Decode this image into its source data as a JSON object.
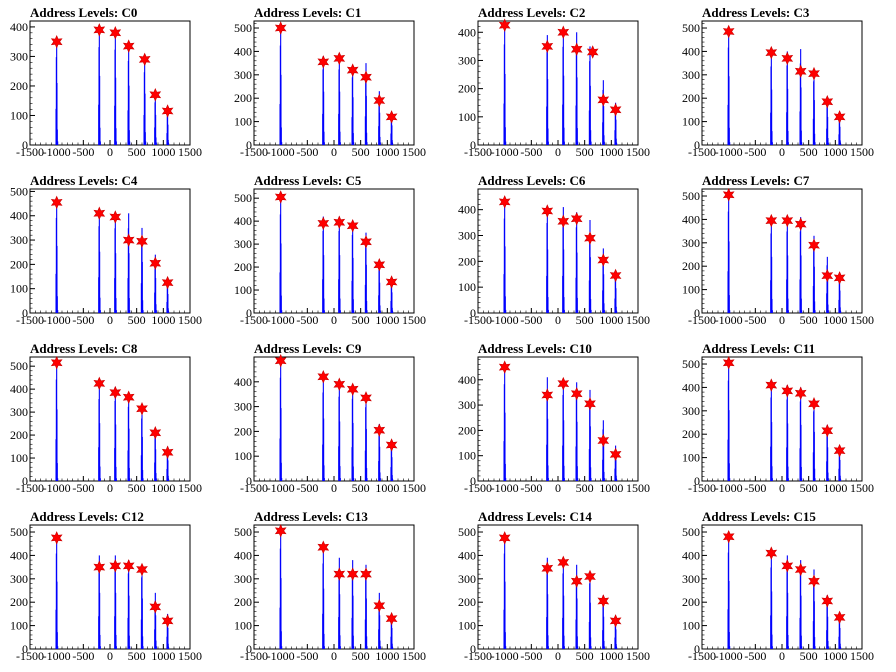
{
  "chart_data": [
    {
      "title": "Address Levels: C0",
      "type": "bar",
      "xlim": [
        -1500,
        1500
      ],
      "ylim": [
        0,
        420
      ],
      "yticks": [
        0,
        100,
        200,
        300,
        400
      ],
      "xticks": [
        -1500,
        -1000,
        -500,
        0,
        500,
        1000,
        1500
      ],
      "peaks": [
        -1000,
        -200,
        100,
        350,
        650,
        850,
        1080
      ],
      "counts": [
        350,
        390,
        380,
        335,
        290,
        170,
        115
      ],
      "markers": [
        {
          "x": -1000,
          "y": 350
        },
        {
          "x": -200,
          "y": 390
        },
        {
          "x": 100,
          "y": 380
        },
        {
          "x": 350,
          "y": 335
        },
        {
          "x": 650,
          "y": 290
        },
        {
          "x": 850,
          "y": 170
        },
        {
          "x": 1080,
          "y": 115
        }
      ]
    },
    {
      "title": "Address Levels: C1",
      "type": "bar",
      "xlim": [
        -1500,
        1500
      ],
      "ylim": [
        0,
        530
      ],
      "yticks": [
        0,
        100,
        200,
        300,
        400,
        500
      ],
      "xticks": [
        -1500,
        -1000,
        -500,
        0,
        500,
        1000,
        1500
      ],
      "peaks": [
        -1000,
        -200,
        100,
        350,
        600,
        850,
        1080
      ],
      "counts": [
        500,
        380,
        380,
        340,
        350,
        230,
        140
      ],
      "markers": [
        {
          "x": -1000,
          "y": 500
        },
        {
          "x": -200,
          "y": 355
        },
        {
          "x": 100,
          "y": 370
        },
        {
          "x": 350,
          "y": 320
        },
        {
          "x": 600,
          "y": 290
        },
        {
          "x": 850,
          "y": 190
        },
        {
          "x": 1080,
          "y": 120
        }
      ]
    },
    {
      "title": "Address Levels: C2",
      "type": "bar",
      "xlim": [
        -1500,
        1500
      ],
      "ylim": [
        0,
        440
      ],
      "yticks": [
        0,
        100,
        200,
        300,
        400
      ],
      "xticks": [
        -1500,
        -1000,
        -500,
        0,
        500,
        1000,
        1500
      ],
      "peaks": [
        -1000,
        -200,
        100,
        350,
        600,
        850,
        1080
      ],
      "counts": [
        420,
        390,
        410,
        400,
        350,
        230,
        150
      ],
      "markers": [
        {
          "x": -1000,
          "y": 425
        },
        {
          "x": -200,
          "y": 350
        },
        {
          "x": 100,
          "y": 400
        },
        {
          "x": 350,
          "y": 340
        },
        {
          "x": 650,
          "y": 330
        },
        {
          "x": 850,
          "y": 160
        },
        {
          "x": 1080,
          "y": 125
        }
      ]
    },
    {
      "title": "Address Levels: C3",
      "type": "bar",
      "xlim": [
        -1500,
        1500
      ],
      "ylim": [
        0,
        530
      ],
      "yticks": [
        0,
        100,
        200,
        300,
        400,
        500
      ],
      "xticks": [
        -1500,
        -1000,
        -500,
        0,
        500,
        1000,
        1500
      ],
      "peaks": [
        -1000,
        -200,
        100,
        350,
        600,
        850,
        1080
      ],
      "counts": [
        490,
        395,
        400,
        410,
        320,
        200,
        130
      ],
      "markers": [
        {
          "x": -1000,
          "y": 485
        },
        {
          "x": -200,
          "y": 395
        },
        {
          "x": 100,
          "y": 370
        },
        {
          "x": 350,
          "y": 315
        },
        {
          "x": 600,
          "y": 305
        },
        {
          "x": 850,
          "y": 185
        },
        {
          "x": 1080,
          "y": 120
        }
      ]
    },
    {
      "title": "Address Levels: C4",
      "type": "bar",
      "xlim": [
        -1500,
        1500
      ],
      "ylim": [
        0,
        510
      ],
      "yticks": [
        0,
        100,
        200,
        300,
        400,
        500
      ],
      "xticks": [
        -1500,
        -1000,
        -500,
        0,
        500,
        1000,
        1500
      ],
      "peaks": [
        -1000,
        -200,
        100,
        350,
        600,
        850,
        1080
      ],
      "counts": [
        460,
        420,
        410,
        410,
        350,
        240,
        130
      ],
      "markers": [
        {
          "x": -1000,
          "y": 455
        },
        {
          "x": -200,
          "y": 410
        },
        {
          "x": 100,
          "y": 395
        },
        {
          "x": 350,
          "y": 300
        },
        {
          "x": 600,
          "y": 295
        },
        {
          "x": 850,
          "y": 205
        },
        {
          "x": 1080,
          "y": 125
        }
      ]
    },
    {
      "title": "Address Levels: C5",
      "type": "bar",
      "xlim": [
        -1500,
        1500
      ],
      "ylim": [
        0,
        540
      ],
      "yticks": [
        0,
        100,
        200,
        300,
        400,
        500
      ],
      "xticks": [
        -1500,
        -1000,
        -500,
        0,
        500,
        1000,
        1500
      ],
      "peaks": [
        -1000,
        -200,
        100,
        350,
        600,
        850,
        1080
      ],
      "counts": [
        505,
        420,
        420,
        400,
        350,
        220,
        150
      ],
      "markers": [
        {
          "x": -1000,
          "y": 505
        },
        {
          "x": -200,
          "y": 390
        },
        {
          "x": 100,
          "y": 395
        },
        {
          "x": 350,
          "y": 380
        },
        {
          "x": 600,
          "y": 310
        },
        {
          "x": 850,
          "y": 210
        },
        {
          "x": 1080,
          "y": 135
        }
      ]
    },
    {
      "title": "Address Levels: C6",
      "type": "bar",
      "xlim": [
        -1500,
        1500
      ],
      "ylim": [
        0,
        480
      ],
      "yticks": [
        0,
        100,
        200,
        300,
        400
      ],
      "xticks": [
        -1500,
        -1000,
        -500,
        0,
        500,
        1000,
        1500
      ],
      "peaks": [
        -1000,
        -200,
        100,
        350,
        600,
        850,
        1080
      ],
      "counts": [
        430,
        410,
        410,
        390,
        360,
        250,
        160
      ],
      "markers": [
        {
          "x": -1000,
          "y": 430
        },
        {
          "x": -200,
          "y": 395
        },
        {
          "x": 100,
          "y": 355
        },
        {
          "x": 350,
          "y": 365
        },
        {
          "x": 600,
          "y": 290
        },
        {
          "x": 850,
          "y": 205
        },
        {
          "x": 1080,
          "y": 145
        }
      ]
    },
    {
      "title": "Address Levels: C7",
      "type": "bar",
      "xlim": [
        -1500,
        1500
      ],
      "ylim": [
        0,
        530
      ],
      "yticks": [
        0,
        100,
        200,
        300,
        400,
        500
      ],
      "xticks": [
        -1500,
        -1000,
        -500,
        0,
        500,
        1000,
        1500
      ],
      "peaks": [
        -1000,
        -200,
        100,
        350,
        600,
        850,
        1080
      ],
      "counts": [
        510,
        400,
        410,
        410,
        330,
        240,
        160
      ],
      "markers": [
        {
          "x": -1000,
          "y": 505
        },
        {
          "x": -200,
          "y": 395
        },
        {
          "x": 100,
          "y": 395
        },
        {
          "x": 350,
          "y": 380
        },
        {
          "x": 600,
          "y": 290
        },
        {
          "x": 850,
          "y": 160
        },
        {
          "x": 1080,
          "y": 150
        }
      ]
    },
    {
      "title": "Address Levels: C8",
      "type": "bar",
      "xlim": [
        -1500,
        1500
      ],
      "ylim": [
        0,
        540
      ],
      "yticks": [
        0,
        100,
        200,
        300,
        400,
        500
      ],
      "xticks": [
        -1500,
        -1000,
        -500,
        0,
        500,
        1000,
        1500
      ],
      "peaks": [
        -1000,
        -200,
        100,
        350,
        600,
        850,
        1080
      ],
      "counts": [
        520,
        420,
        410,
        380,
        320,
        230,
        150
      ],
      "markers": [
        {
          "x": -1000,
          "y": 515
        },
        {
          "x": -200,
          "y": 425
        },
        {
          "x": 100,
          "y": 385
        },
        {
          "x": 350,
          "y": 365
        },
        {
          "x": 600,
          "y": 315
        },
        {
          "x": 850,
          "y": 210
        },
        {
          "x": 1080,
          "y": 125
        }
      ]
    },
    {
      "title": "Address Levels: C9",
      "type": "bar",
      "xlim": [
        -1500,
        1500
      ],
      "ylim": [
        0,
        500
      ],
      "yticks": [
        0,
        100,
        200,
        300,
        400
      ],
      "xticks": [
        -1500,
        -1000,
        -500,
        0,
        500,
        1000,
        1500
      ],
      "peaks": [
        -1000,
        -200,
        100,
        350,
        600,
        850,
        1080
      ],
      "counts": [
        490,
        420,
        400,
        390,
        350,
        230,
        160
      ],
      "markers": [
        {
          "x": -1000,
          "y": 485
        },
        {
          "x": -200,
          "y": 420
        },
        {
          "x": 100,
          "y": 390
        },
        {
          "x": 350,
          "y": 370
        },
        {
          "x": 600,
          "y": 335
        },
        {
          "x": 850,
          "y": 205
        },
        {
          "x": 1080,
          "y": 145
        }
      ]
    },
    {
      "title": "Address Levels: C10",
      "type": "bar",
      "xlim": [
        -1500,
        1500
      ],
      "ylim": [
        0,
        490
      ],
      "yticks": [
        0,
        100,
        200,
        300,
        400
      ],
      "xticks": [
        -1500,
        -1000,
        -500,
        0,
        500,
        1000,
        1500
      ],
      "peaks": [
        -1000,
        -200,
        100,
        350,
        600,
        850,
        1080
      ],
      "counts": [
        450,
        410,
        400,
        390,
        360,
        240,
        140
      ],
      "markers": [
        {
          "x": -1000,
          "y": 450
        },
        {
          "x": -200,
          "y": 340
        },
        {
          "x": 100,
          "y": 385
        },
        {
          "x": 350,
          "y": 345
        },
        {
          "x": 600,
          "y": 305
        },
        {
          "x": 850,
          "y": 160
        },
        {
          "x": 1080,
          "y": 105
        }
      ]
    },
    {
      "title": "Address Levels: C11",
      "type": "bar",
      "xlim": [
        -1500,
        1500
      ],
      "ylim": [
        0,
        530
      ],
      "yticks": [
        0,
        100,
        200,
        300,
        400,
        500
      ],
      "xticks": [
        -1500,
        -1000,
        -500,
        0,
        500,
        1000,
        1500
      ],
      "peaks": [
        -1000,
        -200,
        100,
        350,
        600,
        850,
        1080
      ],
      "counts": [
        505,
        420,
        410,
        400,
        350,
        240,
        150
      ],
      "markers": [
        {
          "x": -1000,
          "y": 505
        },
        {
          "x": -200,
          "y": 410
        },
        {
          "x": 100,
          "y": 385
        },
        {
          "x": 350,
          "y": 375
        },
        {
          "x": 600,
          "y": 330
        },
        {
          "x": 850,
          "y": 215
        },
        {
          "x": 1080,
          "y": 130
        }
      ]
    },
    {
      "title": "Address Levels: C12",
      "type": "bar",
      "xlim": [
        -1500,
        1500
      ],
      "ylim": [
        0,
        530
      ],
      "yticks": [
        0,
        100,
        200,
        300,
        400,
        500
      ],
      "xticks": [
        -1500,
        -1000,
        -500,
        0,
        500,
        1000,
        1500
      ],
      "peaks": [
        -1000,
        -200,
        100,
        350,
        600,
        850,
        1080
      ],
      "counts": [
        480,
        400,
        400,
        380,
        360,
        240,
        150
      ],
      "markers": [
        {
          "x": -1000,
          "y": 475
        },
        {
          "x": -200,
          "y": 350
        },
        {
          "x": 100,
          "y": 355
        },
        {
          "x": 350,
          "y": 355
        },
        {
          "x": 600,
          "y": 340
        },
        {
          "x": 850,
          "y": 180
        },
        {
          "x": 1080,
          "y": 120
        }
      ]
    },
    {
      "title": "Address Levels: C13",
      "type": "bar",
      "xlim": [
        -1500,
        1500
      ],
      "ylim": [
        0,
        530
      ],
      "yticks": [
        0,
        100,
        200,
        300,
        400,
        500
      ],
      "xticks": [
        -1500,
        -1000,
        -500,
        0,
        500,
        1000,
        1500
      ],
      "peaks": [
        -1000,
        -200,
        100,
        350,
        600,
        850,
        1080
      ],
      "counts": [
        505,
        430,
        390,
        380,
        360,
        240,
        150
      ],
      "markers": [
        {
          "x": -1000,
          "y": 505
        },
        {
          "x": -200,
          "y": 435
        },
        {
          "x": 100,
          "y": 320
        },
        {
          "x": 350,
          "y": 320
        },
        {
          "x": 600,
          "y": 320
        },
        {
          "x": 850,
          "y": 185
        },
        {
          "x": 1080,
          "y": 130
        }
      ]
    },
    {
      "title": "Address Levels: C14",
      "type": "bar",
      "xlim": [
        -1500,
        1500
      ],
      "ylim": [
        0,
        530
      ],
      "yticks": [
        0,
        100,
        200,
        300,
        400,
        500
      ],
      "xticks": [
        -1500,
        -1000,
        -500,
        0,
        500,
        1000,
        1500
      ],
      "peaks": [
        -1000,
        -200,
        100,
        350,
        600,
        850,
        1080
      ],
      "counts": [
        480,
        390,
        380,
        360,
        330,
        230,
        140
      ],
      "markers": [
        {
          "x": -1000,
          "y": 475
        },
        {
          "x": -200,
          "y": 345
        },
        {
          "x": 100,
          "y": 370
        },
        {
          "x": 350,
          "y": 290
        },
        {
          "x": 600,
          "y": 310
        },
        {
          "x": 850,
          "y": 205
        },
        {
          "x": 1080,
          "y": 120
        }
      ]
    },
    {
      "title": "Address Levels: C15",
      "type": "bar",
      "xlim": [
        -1500,
        1500
      ],
      "ylim": [
        0,
        530
      ],
      "yticks": [
        0,
        100,
        200,
        300,
        400,
        500
      ],
      "xticks": [
        -1500,
        -1000,
        -500,
        0,
        500,
        1000,
        1500
      ],
      "peaks": [
        -1000,
        -200,
        100,
        350,
        600,
        850,
        1080
      ],
      "counts": [
        485,
        410,
        400,
        380,
        340,
        230,
        150
      ],
      "markers": [
        {
          "x": -1000,
          "y": 480
        },
        {
          "x": -200,
          "y": 410
        },
        {
          "x": 100,
          "y": 355
        },
        {
          "x": 350,
          "y": 340
        },
        {
          "x": 600,
          "y": 290
        },
        {
          "x": 850,
          "y": 205
        },
        {
          "x": 1080,
          "y": 135
        }
      ]
    }
  ],
  "colors": {
    "bar": "#0000ff",
    "marker": "#ff0000",
    "marker_stroke": "#cc0000",
    "axis": "#000000"
  },
  "marker_shape": "star"
}
